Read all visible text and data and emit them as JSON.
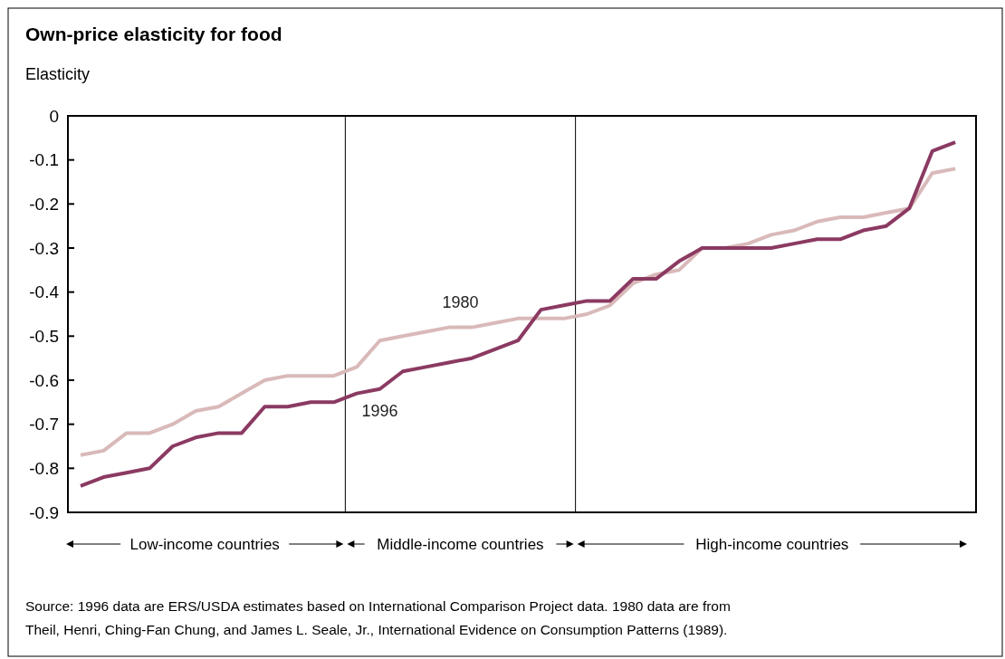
{
  "chart_data": {
    "type": "line",
    "title": "Own-price elasticity for food",
    "ylabel": "Elasticity",
    "categories": [
      null,
      null,
      null,
      null,
      null,
      null,
      null,
      null,
      null,
      null,
      null,
      null,
      null,
      null,
      null,
      null,
      null,
      null,
      null,
      null,
      null,
      null,
      null,
      null,
      null,
      null,
      null,
      null,
      null,
      null,
      null,
      null,
      null,
      null,
      null,
      null,
      null,
      null,
      null
    ],
    "series": [
      {
        "name": "1980",
        "color": "#d9b9b9",
        "values": [
          -0.77,
          -0.76,
          -0.72,
          -0.72,
          -0.7,
          -0.67,
          -0.66,
          -0.63,
          -0.6,
          -0.59,
          -0.59,
          -0.59,
          -0.57,
          -0.51,
          -0.5,
          -0.49,
          -0.48,
          -0.48,
          -0.47,
          -0.46,
          -0.46,
          -0.46,
          -0.45,
          -0.43,
          -0.38,
          -0.36,
          -0.35,
          -0.3,
          -0.3,
          -0.29,
          -0.27,
          -0.26,
          -0.24,
          -0.23,
          -0.23,
          -0.22,
          -0.21,
          -0.13,
          -0.12
        ]
      },
      {
        "name": "1996",
        "color": "#8b3a62",
        "values": [
          -0.84,
          -0.82,
          -0.81,
          -0.8,
          -0.75,
          -0.73,
          -0.72,
          -0.72,
          -0.66,
          -0.66,
          -0.65,
          -0.65,
          -0.63,
          -0.62,
          -0.58,
          -0.57,
          -0.56,
          -0.55,
          -0.53,
          -0.51,
          -0.44,
          -0.43,
          -0.42,
          -0.42,
          -0.37,
          -0.37,
          -0.33,
          -0.3,
          -0.3,
          -0.3,
          -0.3,
          -0.29,
          -0.28,
          -0.28,
          -0.26,
          -0.25,
          -0.21,
          -0.08,
          -0.06
        ]
      }
    ],
    "ylim": [
      -0.9,
      0
    ],
    "yticks": [
      -0.9,
      -0.8,
      -0.7,
      -0.6,
      -0.5,
      -0.4,
      -0.3,
      -0.2,
      -0.1,
      0
    ],
    "grid": false,
    "marker": "none",
    "line_style": "solid",
    "annotations": [
      "Low-income countries",
      "Middle-income countries",
      "High-income countries",
      "Source: 1996 data are ERS/USDA estimates based on International Comparison Project data. 1980 data are from",
      "Theil, Henri, Ching-Fan Chung, and James L. Seale, Jr., International Evidence on Consumption Patterns (1989)."
    ]
  }
}
